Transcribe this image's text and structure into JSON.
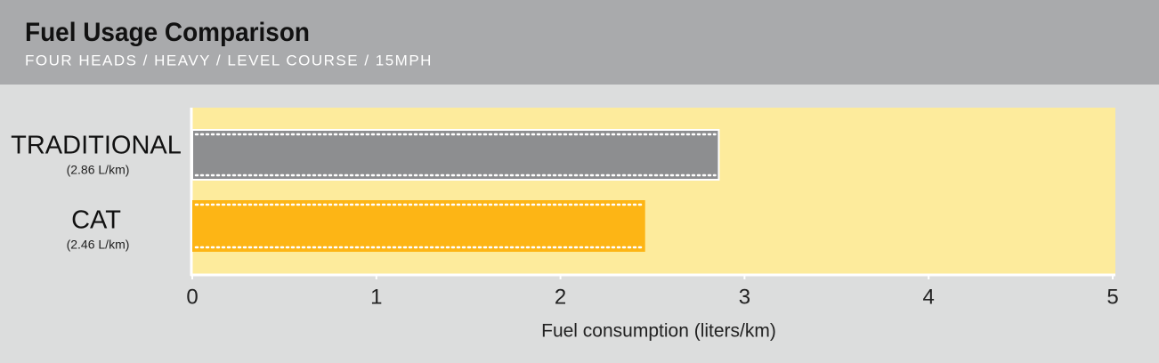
{
  "chart_data": {
    "type": "hbar",
    "title": "Fuel Usage Comparison",
    "subtitle": "FOUR HEADS / HEAVY / LEVEL COURSE / 15MPH",
    "x_label": "Fuel consumption (liters/km)",
    "categories": [
      "TRADITIONAL",
      "CAT"
    ],
    "values": [
      2.86,
      2.46
    ],
    "value_labels": [
      "(2.86 L/km)",
      "(2.46 L/km)"
    ],
    "colors": [
      "#8d8e90",
      "#fdb515"
    ],
    "xlim": [
      0,
      5
    ],
    "xticks": [
      0,
      1,
      2,
      3,
      4,
      5
    ],
    "plot_color": "#fdeb9c"
  }
}
